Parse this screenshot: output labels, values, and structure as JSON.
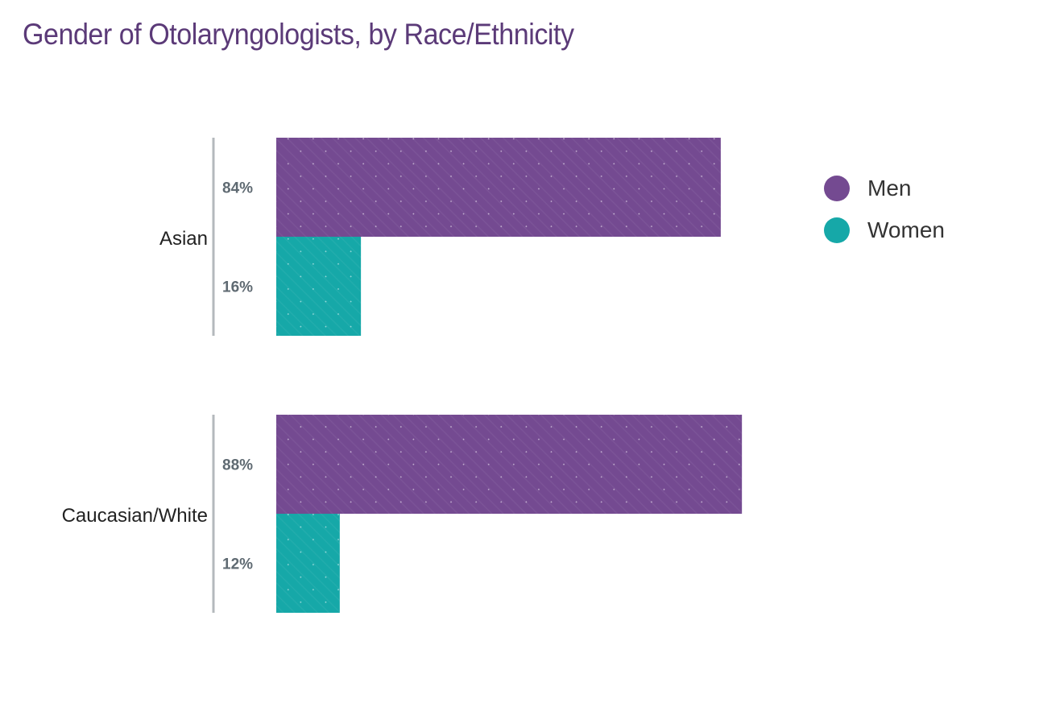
{
  "title": "Gender of Otolaryngologists, by Race/Ethnicity",
  "colors": {
    "men": "#744a91",
    "women": "#16a8a8",
    "axis": "#b4b9bc",
    "value_label": "#5f6a72",
    "category_label": "#222222",
    "title": "#5b3a78"
  },
  "legend": [
    {
      "label": "Men",
      "color": "#744a91"
    },
    {
      "label": "Women",
      "color": "#16a8a8"
    }
  ],
  "chart_data": {
    "type": "bar",
    "orientation": "horizontal",
    "title": "Gender of Otolaryngologists, by Race/Ethnicity",
    "categories": [
      "Asian",
      "Caucasian/White"
    ],
    "series": [
      {
        "name": "Men",
        "values": [
          84,
          88
        ],
        "labels": [
          "84%",
          "88%"
        ]
      },
      {
        "name": "Women",
        "values": [
          16,
          12
        ],
        "labels": [
          "16%",
          "12%"
        ]
      }
    ],
    "unit": "%",
    "xlim": [
      0,
      100
    ],
    "grid": false,
    "legend_position": "right"
  }
}
